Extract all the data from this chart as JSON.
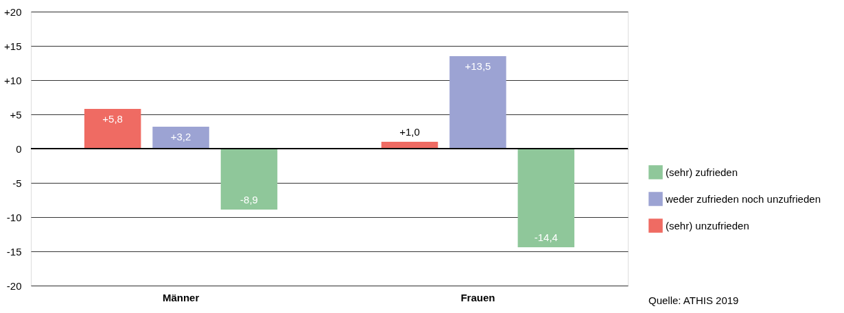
{
  "chart_data": {
    "type": "bar",
    "categories": [
      "Männer",
      "Frauen"
    ],
    "series": [
      {
        "name": "(sehr) unzufrieden",
        "color": "#ef6b63",
        "values": [
          5.8,
          1.0
        ],
        "value_labels": [
          "+5,8",
          "+1,0"
        ]
      },
      {
        "name": "weder zufrieden noch unzufrieden",
        "color": "#9ca3d3",
        "values": [
          3.2,
          13.5
        ],
        "value_labels": [
          "+3,2",
          "+13,5"
        ]
      },
      {
        "name": "(sehr) zufrieden",
        "color": "#8fc79a",
        "values": [
          -8.9,
          -14.4
        ],
        "value_labels": [
          "-8,9",
          "-14,4"
        ]
      }
    ],
    "ylim": [
      -20,
      20
    ],
    "yticks": [
      {
        "value": 20,
        "label": "+20"
      },
      {
        "value": 15,
        "label": "+15"
      },
      {
        "value": 10,
        "label": "+10"
      },
      {
        "value": 5,
        "label": "+5"
      },
      0,
      -5,
      -10,
      -15,
      -20
    ],
    "grid": "y",
    "legend": "right",
    "ref_lines": [
      {
        "axis": "y",
        "value": 0,
        "color": "#000000"
      }
    ],
    "annotations": [
      "Quelle: ATHIS 2019"
    ]
  }
}
